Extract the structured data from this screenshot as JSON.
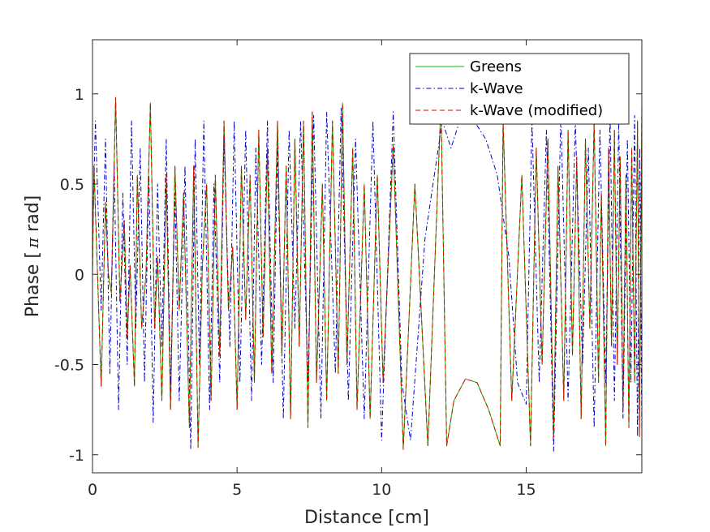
{
  "chart_data": {
    "type": "line",
    "title": "",
    "xlabel": "Distance [cm]",
    "ylabel_parts": [
      "Phase [",
      "π",
      " rad]"
    ],
    "xlim": [
      0,
      19
    ],
    "ylim": [
      -1.1,
      1.3
    ],
    "xticks": [
      0,
      5,
      10,
      15
    ],
    "xtick_labels": [
      "0",
      "5",
      "10",
      "15"
    ],
    "yticks": [
      -1,
      -0.5,
      0,
      0.5,
      1
    ],
    "ytick_labels": [
      "-1",
      "-0.5",
      "0",
      "0.5",
      "1"
    ],
    "legend_position": "top-right",
    "series": [
      {
        "name": "Greens",
        "color": "#00c000",
        "style": "solid",
        "x": [
          0.0,
          0.05,
          0.3,
          0.45,
          0.55,
          0.65,
          0.8,
          0.95,
          1.1,
          1.2,
          1.3,
          1.45,
          1.55,
          1.7,
          1.85,
          2.0,
          2.15,
          2.25,
          2.4,
          2.55,
          2.7,
          2.85,
          3.0,
          3.15,
          3.35,
          3.5,
          3.65,
          3.8,
          3.95,
          4.1,
          4.25,
          4.4,
          4.55,
          4.7,
          4.85,
          5.0,
          5.15,
          5.3,
          5.45,
          5.6,
          5.75,
          5.9,
          6.05,
          6.2,
          6.4,
          6.55,
          6.7,
          6.85,
          7.0,
          7.15,
          7.3,
          7.45,
          7.6,
          7.75,
          7.95,
          8.1,
          8.3,
          8.5,
          8.65,
          8.8,
          9.0,
          9.15,
          9.4,
          9.6,
          9.85,
          10.05,
          10.4,
          10.75,
          11.15,
          11.6,
          12.05,
          12.25,
          12.5,
          12.9,
          13.3,
          13.7,
          14.1,
          14.2,
          14.5,
          14.85,
          15.15,
          15.35,
          15.55,
          15.75,
          15.95,
          16.1,
          16.3,
          16.45,
          16.6,
          16.75,
          16.9,
          17.05,
          17.2,
          17.35,
          17.5,
          17.6,
          17.75,
          17.85,
          17.95,
          18.05,
          18.15,
          18.25,
          18.35,
          18.45,
          18.55,
          18.65,
          18.75,
          18.85,
          18.92,
          19.0
        ],
        "y": [
          0.0,
          0.6,
          -0.62,
          0.4,
          0.0,
          -0.1,
          0.98,
          -0.15,
          0.3,
          -0.35,
          0.05,
          -0.62,
          0.55,
          -0.3,
          0.0,
          0.95,
          -0.3,
          0.1,
          -0.7,
          0.55,
          -0.75,
          0.6,
          -0.2,
          0.45,
          -0.85,
          0.6,
          -0.96,
          0.05,
          0.5,
          -0.7,
          0.55,
          -0.45,
          0.85,
          -0.2,
          0.15,
          -0.75,
          0.6,
          -0.25,
          0.55,
          -0.6,
          0.8,
          -0.35,
          0.7,
          -0.55,
          0.85,
          -0.45,
          0.6,
          -0.8,
          0.75,
          -0.4,
          0.85,
          -0.85,
          0.9,
          -0.6,
          0.5,
          -0.7,
          0.85,
          -0.55,
          0.95,
          -0.5,
          0.7,
          -0.75,
          0.5,
          -0.8,
          0.55,
          -0.6,
          0.72,
          -0.97,
          0.5,
          -0.95,
          0.95,
          -0.95,
          -0.7,
          -0.58,
          -0.6,
          -0.75,
          -0.95,
          0.85,
          -0.7,
          0.55,
          -0.95,
          0.7,
          -0.5,
          0.75,
          -0.9,
          0.6,
          -0.7,
          0.8,
          -0.45,
          0.65,
          -0.8,
          0.75,
          -0.3,
          0.85,
          -0.6,
          0.45,
          -0.95,
          0.7,
          -0.4,
          0.8,
          -0.5,
          0.65,
          -0.75,
          0.55,
          -0.85,
          0.7,
          -0.6,
          0.85,
          -0.9,
          0.95
        ]
      },
      {
        "name": "k-Wave",
        "color": "#0000c8",
        "style": "dashdot",
        "x": [
          0.0,
          0.1,
          0.3,
          0.45,
          0.6,
          0.75,
          0.9,
          1.05,
          1.2,
          1.35,
          1.5,
          1.65,
          1.8,
          1.95,
          2.1,
          2.25,
          2.4,
          2.55,
          2.7,
          2.85,
          3.0,
          3.2,
          3.4,
          3.55,
          3.7,
          3.85,
          4.05,
          4.2,
          4.4,
          4.55,
          4.75,
          4.9,
          5.1,
          5.3,
          5.5,
          5.65,
          5.85,
          6.05,
          6.25,
          6.4,
          6.6,
          6.8,
          7.0,
          7.2,
          7.45,
          7.65,
          7.9,
          8.1,
          8.4,
          8.6,
          8.85,
          9.1,
          9.4,
          9.7,
          10.0,
          10.4,
          10.7,
          11.0,
          11.5,
          12.1,
          12.4,
          12.8,
          13.2,
          13.6,
          14.0,
          14.4,
          14.7,
          15.0,
          15.2,
          15.45,
          15.7,
          15.95,
          16.2,
          16.45,
          16.7,
          16.95,
          17.15,
          17.35,
          17.55,
          17.75,
          17.9,
          18.05,
          18.2,
          18.35,
          18.5,
          18.62,
          18.75,
          18.85,
          18.93,
          19.0
        ],
        "y": [
          0.2,
          0.85,
          -0.2,
          0.75,
          -0.55,
          0.6,
          -0.75,
          0.45,
          -0.5,
          0.85,
          -0.3,
          0.7,
          -0.6,
          0.55,
          -0.82,
          0.5,
          -0.4,
          0.75,
          -0.65,
          0.45,
          -0.7,
          0.6,
          -0.97,
          0.75,
          -0.5,
          0.85,
          -0.75,
          0.5,
          -0.6,
          0.75,
          -0.4,
          0.85,
          -0.6,
          0.8,
          -0.7,
          0.7,
          -0.5,
          0.85,
          -0.6,
          0.7,
          -0.8,
          0.8,
          -0.3,
          0.85,
          -0.6,
          0.88,
          -0.8,
          0.9,
          -0.55,
          0.92,
          -0.7,
          0.75,
          -0.8,
          0.85,
          -0.92,
          0.9,
          -0.6,
          -0.92,
          0.2,
          0.85,
          0.7,
          0.9,
          0.85,
          0.75,
          0.55,
          0.1,
          -0.6,
          -0.72,
          0.85,
          -0.6,
          0.8,
          -0.98,
          0.9,
          -0.7,
          0.85,
          -0.5,
          0.7,
          -0.85,
          0.8,
          -0.6,
          0.9,
          -0.7,
          0.85,
          -0.8,
          0.75,
          -0.6,
          0.88,
          -0.9,
          0.7,
          -0.9
        ]
      },
      {
        "name": "k-Wave (modified)",
        "color": "#e00000",
        "style": "dashed",
        "x": [
          0.0,
          0.05,
          0.3,
          0.45,
          0.55,
          0.65,
          0.8,
          0.95,
          1.1,
          1.2,
          1.3,
          1.45,
          1.55,
          1.7,
          1.85,
          2.0,
          2.15,
          2.25,
          2.4,
          2.55,
          2.7,
          2.85,
          3.0,
          3.15,
          3.35,
          3.5,
          3.65,
          3.8,
          3.95,
          4.1,
          4.25,
          4.4,
          4.55,
          4.7,
          4.85,
          5.0,
          5.15,
          5.3,
          5.45,
          5.6,
          5.75,
          5.9,
          6.05,
          6.2,
          6.4,
          6.55,
          6.7,
          6.85,
          7.0,
          7.15,
          7.3,
          7.45,
          7.6,
          7.75,
          7.95,
          8.1,
          8.3,
          8.5,
          8.65,
          8.8,
          9.0,
          9.15,
          9.4,
          9.6,
          9.85,
          10.05,
          10.4,
          10.75,
          11.15,
          11.6,
          12.05,
          12.25,
          12.5,
          12.9,
          13.3,
          13.7,
          14.1,
          14.2,
          14.5,
          14.85,
          15.15,
          15.35,
          15.55,
          15.75,
          15.95,
          16.1,
          16.3,
          16.45,
          16.6,
          16.75,
          16.9,
          17.05,
          17.2,
          17.35,
          17.5,
          17.6,
          17.75,
          17.85,
          17.95,
          18.05,
          18.15,
          18.25,
          18.35,
          18.45,
          18.55,
          18.65,
          18.75,
          18.85,
          18.92,
          19.0
        ],
        "y": [
          0.0,
          0.6,
          -0.62,
          0.4,
          0.0,
          -0.1,
          0.98,
          -0.15,
          0.3,
          -0.35,
          0.05,
          -0.62,
          0.55,
          -0.3,
          0.0,
          0.95,
          -0.3,
          0.1,
          -0.7,
          0.55,
          -0.75,
          0.6,
          -0.2,
          0.45,
          -0.85,
          0.6,
          -0.96,
          0.05,
          0.5,
          -0.7,
          0.55,
          -0.45,
          0.85,
          -0.2,
          0.15,
          -0.75,
          0.6,
          -0.25,
          0.55,
          -0.6,
          0.8,
          -0.35,
          0.7,
          -0.55,
          0.85,
          -0.45,
          0.6,
          -0.8,
          0.75,
          -0.4,
          0.85,
          -0.85,
          0.9,
          -0.6,
          0.5,
          -0.7,
          0.85,
          -0.55,
          0.95,
          -0.5,
          0.7,
          -0.75,
          0.5,
          -0.8,
          0.55,
          -0.6,
          0.72,
          -0.97,
          0.5,
          -0.95,
          0.95,
          -0.95,
          -0.7,
          -0.58,
          -0.6,
          -0.75,
          -0.95,
          0.85,
          -0.7,
          0.55,
          -0.95,
          0.7,
          -0.5,
          0.75,
          -0.9,
          0.6,
          -0.7,
          0.8,
          -0.45,
          0.65,
          -0.8,
          0.75,
          -0.3,
          0.85,
          -0.6,
          0.45,
          -0.95,
          0.7,
          -0.4,
          0.8,
          -0.5,
          0.65,
          -0.75,
          0.55,
          -0.85,
          0.7,
          -0.6,
          0.85,
          -0.9,
          0.95
        ]
      }
    ]
  }
}
